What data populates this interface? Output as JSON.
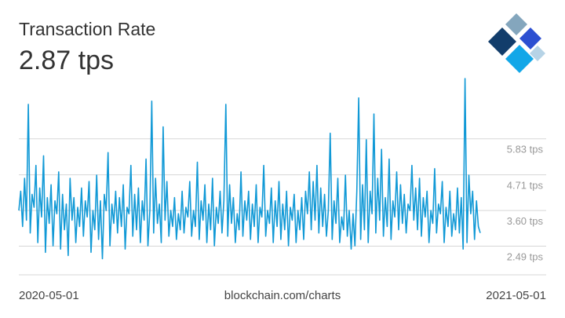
{
  "header": {
    "title": "Transaction Rate",
    "value": "2.87 tps"
  },
  "footer": {
    "start_date": "2020-05-01",
    "source": "blockchain.com/charts",
    "end_date": "2021-05-01"
  },
  "colors": {
    "line": "#1199d6",
    "grid": "#d7d7d7",
    "tick_text": "#999999",
    "logo_dark": "#123d6b",
    "logo_blue": "#2c4fd1",
    "logo_light": "#84a6bd",
    "logo_sky": "#12a7e8"
  },
  "logo": {
    "icon": "blockchain-logo-icon"
  },
  "chart_data": {
    "type": "line",
    "title": "Transaction Rate",
    "xlabel": "",
    "ylabel": "",
    "x_range": [
      "2020-05-01",
      "2021-05-01"
    ],
    "ylim": [
      1.6,
      7.8
    ],
    "y_ticks": [
      2.49,
      3.6,
      4.71,
      5.83
    ],
    "y_tick_labels": [
      "2.49 tps",
      "3.60 tps",
      "4.71 tps",
      "5.83 tps"
    ],
    "grid": true,
    "series": [
      {
        "values": [
          3.6,
          4.2,
          3.1,
          4.6,
          3.3,
          6.9,
          2.9,
          4.1,
          3.7,
          5.0,
          2.6,
          4.3,
          3.4,
          5.3,
          2.3,
          4.0,
          3.2,
          4.4,
          2.5,
          3.9,
          3.5,
          4.8,
          2.4,
          4.1,
          3.0,
          3.8,
          2.2,
          4.6,
          3.3,
          4.0,
          2.6,
          3.7,
          3.1,
          4.3,
          2.8,
          3.9,
          3.4,
          4.5,
          2.3,
          3.6,
          3.0,
          4.7,
          2.7,
          3.9,
          2.1,
          4.1,
          3.6,
          5.4,
          2.5,
          3.8,
          3.2,
          4.2,
          2.9,
          4.0,
          3.1,
          4.4,
          2.4,
          3.7,
          3.5,
          5.0,
          2.8,
          4.1,
          3.0,
          4.3,
          2.6,
          3.9,
          3.3,
          5.2,
          2.5,
          3.6,
          7.0,
          2.9,
          4.6,
          3.2,
          3.8,
          2.6,
          6.2,
          3.3,
          4.5,
          2.8,
          3.6,
          3.1,
          4.0,
          2.7,
          3.5,
          3.0,
          4.2,
          2.9,
          3.7,
          3.4,
          4.5,
          2.8,
          3.6,
          3.1,
          5.1,
          2.7,
          3.9,
          3.3,
          4.4,
          2.6,
          3.8,
          3.0,
          4.6,
          2.5,
          3.7,
          3.2,
          4.2,
          2.9,
          3.9,
          6.9,
          2.8,
          4.4,
          3.2,
          4.0,
          2.6,
          3.5,
          3.0,
          4.8,
          2.8,
          3.9,
          3.3,
          4.2,
          2.7,
          3.8,
          3.1,
          4.4,
          2.6,
          3.7,
          3.4,
          5.0,
          2.8,
          3.6,
          3.2,
          4.3,
          2.6,
          3.9,
          3.1,
          4.5,
          2.7,
          3.8,
          3.0,
          4.2,
          2.5,
          3.7,
          3.3,
          4.1,
          2.6,
          3.6,
          3.0,
          4.0,
          2.7,
          4.2,
          3.5,
          4.8,
          3.0,
          4.5,
          3.3,
          5.0,
          2.9,
          4.3,
          3.1,
          4.1,
          2.8,
          3.6,
          6.0,
          2.7,
          3.9,
          3.2,
          4.6,
          2.6,
          3.4,
          3.0,
          4.7,
          2.8,
          3.6,
          2.4,
          3.5,
          2.5,
          4.2,
          7.1,
          2.7,
          4.4,
          3.0,
          5.8,
          2.6,
          4.2,
          3.5,
          6.6,
          2.9,
          4.6,
          3.3,
          5.5,
          2.8,
          4.0,
          3.1,
          5.2,
          2.7,
          3.9,
          3.4,
          4.8,
          3.0,
          4.4,
          3.2,
          4.1,
          2.9,
          3.8,
          3.6,
          5.0,
          3.3,
          4.3,
          3.0,
          4.6,
          2.8,
          4.0,
          3.4,
          4.2,
          2.6,
          3.6,
          3.2,
          4.9,
          2.9,
          3.8,
          3.5,
          4.5,
          2.6,
          3.7,
          3.1,
          4.2,
          2.8,
          3.5,
          3.0,
          4.3,
          2.9,
          4.0,
          2.4,
          7.7,
          2.6,
          4.7,
          3.5,
          4.2,
          2.7,
          3.9,
          3.1,
          2.9
        ]
      }
    ]
  }
}
